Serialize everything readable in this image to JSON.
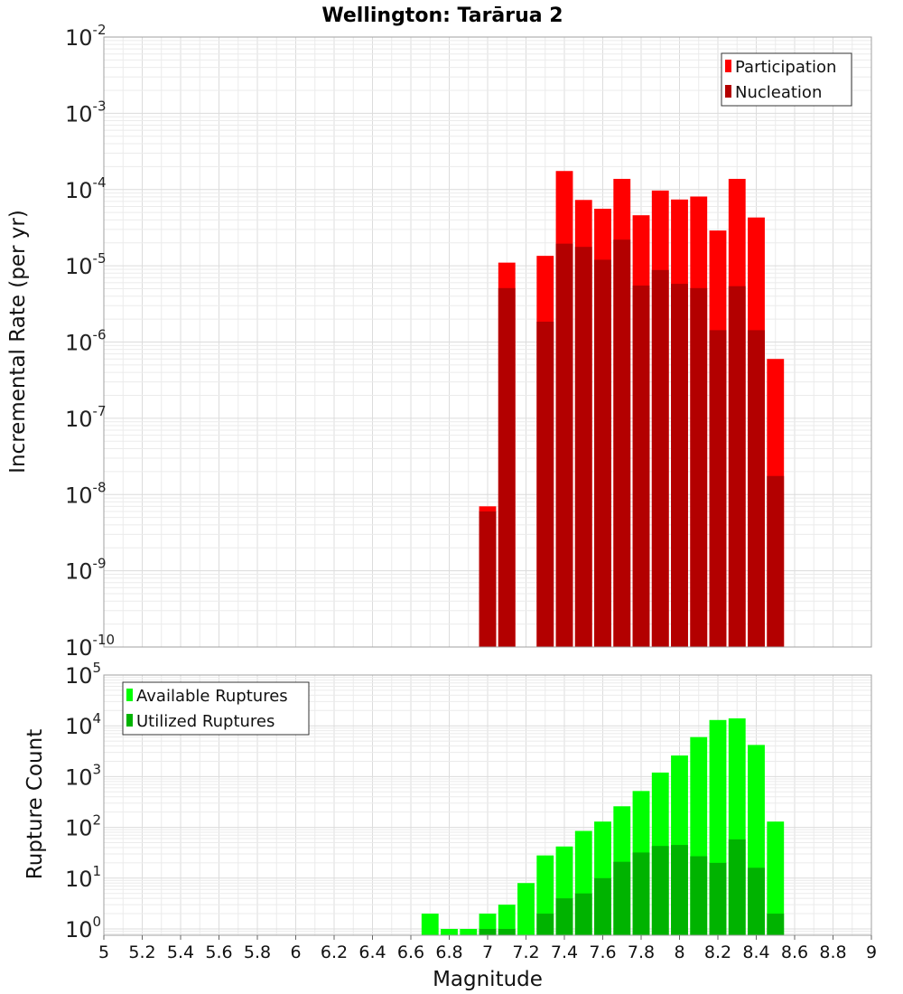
{
  "title": "Wellington: Tarārua 2",
  "xlabel": "Magnitude",
  "x_ticks": [
    "5",
    "5.2",
    "5.4",
    "5.6",
    "5.8",
    "6",
    "6.2",
    "6.4",
    "6.6",
    "6.8",
    "7",
    "7.2",
    "7.4",
    "7.6",
    "7.8",
    "8",
    "8.2",
    "8.4",
    "8.6",
    "8.8",
    "9"
  ],
  "chart_data": [
    {
      "type": "bar",
      "ylabel": "Incremental Rate (per yr)",
      "y_scale": "log",
      "xlim": [
        5,
        9
      ],
      "ylim": [
        1e-10,
        0.01
      ],
      "y_tick_exponents": [
        "-10",
        "-9",
        "-8",
        "-7",
        "-6",
        "-5",
        "-4",
        "-3",
        "-2"
      ],
      "grid": true,
      "legend_position": "top-right",
      "legend": [
        "Participation",
        "Nucleation"
      ],
      "colors": {
        "Participation": "#ff0000",
        "Nucleation": "#b30000"
      },
      "x": [
        7.0,
        7.1,
        7.3,
        7.4,
        7.5,
        7.6,
        7.7,
        7.8,
        7.9,
        8.0,
        8.1,
        8.2,
        8.3,
        8.4,
        8.5
      ],
      "series": [
        {
          "name": "Participation",
          "values": [
            7e-09,
            1.1e-05,
            1.35e-05,
            0.000175,
            7.3e-05,
            5.6e-05,
            0.000138,
            4.6e-05,
            9.7e-05,
            7.4e-05,
            8.1e-05,
            2.9e-05,
            0.000138,
            4.3e-05,
            6e-07
          ]
        },
        {
          "name": "Nucleation",
          "values": [
            6e-09,
            5.1e-06,
            1.85e-06,
            1.95e-05,
            1.77e-05,
            1.2e-05,
            2.2e-05,
            5.5e-06,
            8.8e-06,
            5.8e-06,
            5.1e-06,
            1.43e-06,
            5.4e-06,
            1.43e-06,
            1.75e-08
          ]
        }
      ]
    },
    {
      "type": "bar",
      "ylabel": "Rupture Count",
      "y_scale": "log",
      "xlim": [
        5,
        9
      ],
      "ylim": [
        0.75,
        100000.0
      ],
      "y_tick_exponents": [
        "0",
        "1",
        "2",
        "3",
        "4",
        "5"
      ],
      "grid": true,
      "legend_position": "top-left",
      "legend": [
        "Available Ruptures",
        "Utilized Ruptures"
      ],
      "colors": {
        "Available Ruptures": "#00ff00",
        "Utilized Ruptures": "#00b300"
      },
      "x": [
        6.7,
        6.8,
        6.9,
        7.0,
        7.1,
        7.2,
        7.3,
        7.4,
        7.5,
        7.6,
        7.7,
        7.8,
        7.9,
        8.0,
        8.1,
        8.2,
        8.3,
        8.4,
        8.5
      ],
      "series": [
        {
          "name": "Available Ruptures",
          "values": [
            2,
            1,
            1,
            2,
            3,
            8,
            28,
            42,
            85,
            130,
            260,
            520,
            1200,
            2600,
            6000,
            13000,
            14000,
            4200,
            130
          ]
        },
        {
          "name": "Utilized Ruptures",
          "values": [
            0,
            0,
            0,
            1,
            1,
            0,
            2,
            4,
            5,
            10,
            21,
            32,
            43,
            45,
            27,
            20,
            58,
            16,
            2
          ]
        }
      ]
    }
  ]
}
